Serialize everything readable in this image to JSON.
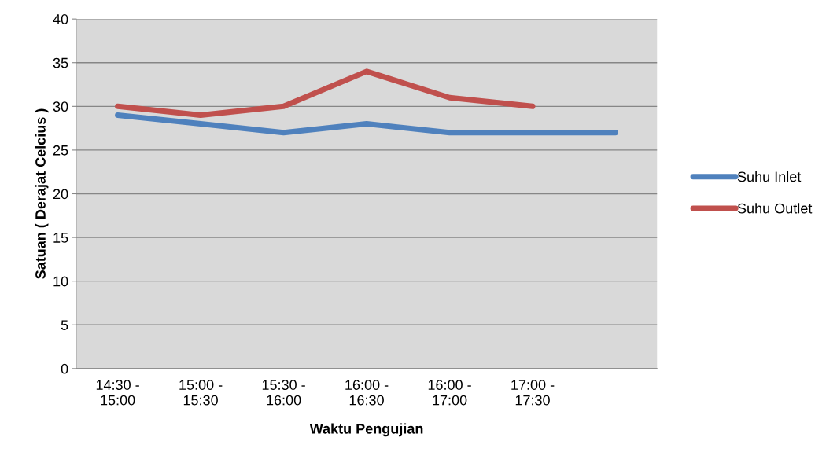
{
  "chart_data": {
    "type": "line",
    "xlabel": "Waktu Pengujian",
    "ylabel": "Satuan ( Derajat Celcius )",
    "categories": [
      "14:30 -\n15:00",
      "15:00 -\n15:30",
      "15:30 -\n16:00",
      "16:00 -\n16:30",
      "16:00 -\n17:00",
      "17:00 -\n17:30",
      null
    ],
    "series": [
      {
        "name": "Suhu Inlet",
        "color": "#4f81bd",
        "values": [
          29,
          28,
          27,
          28,
          27,
          27,
          27
        ]
      },
      {
        "name": "Suhu Outlet",
        "color": "#c0504d",
        "values": [
          30,
          29,
          30,
          34,
          31,
          30,
          null
        ]
      }
    ],
    "ylim": [
      0,
      40
    ],
    "yticks": [
      0,
      5,
      10,
      15,
      20,
      25,
      30,
      35,
      40
    ],
    "grid": "y",
    "legend": "right",
    "marker": "none",
    "line_style": "solid"
  }
}
